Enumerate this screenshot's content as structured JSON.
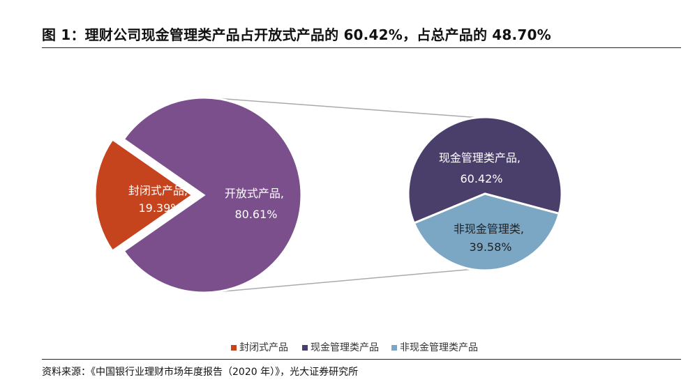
{
  "title": "图 1：理财公司现金管理类产品占开放式产品的 60.42%，占总产品的 48.70%",
  "source": "资料来源：《中国银行业理财市场年度报告（2020 年）》，光大证券研究所",
  "chart_data": [
    {
      "type": "pie",
      "slices": [
        {
          "label_line1": "封闭式产品,",
          "label_line2": "19.39%",
          "value": 19.39,
          "color": "#c5431d"
        },
        {
          "label_line1": "开放式产品,",
          "label_line2": "80.61%",
          "value": 80.61,
          "color": "#7b4f8c"
        }
      ]
    },
    {
      "type": "pie",
      "slices": [
        {
          "label_line1": "现金管理类产品,",
          "label_line2": "60.42%",
          "value": 60.42,
          "color": "#4a3f6b"
        },
        {
          "label_line1": "非现金管理类,",
          "label_line2": "39.58%",
          "value": 39.58,
          "color": "#7ba7c4"
        }
      ]
    }
  ],
  "legend": [
    {
      "label": "封闭式产品",
      "color": "#c5431d"
    },
    {
      "label": "现金管理类产品",
      "color": "#4a3f6b"
    },
    {
      "label": "非现金管理类产品",
      "color": "#7ba7c4"
    }
  ]
}
